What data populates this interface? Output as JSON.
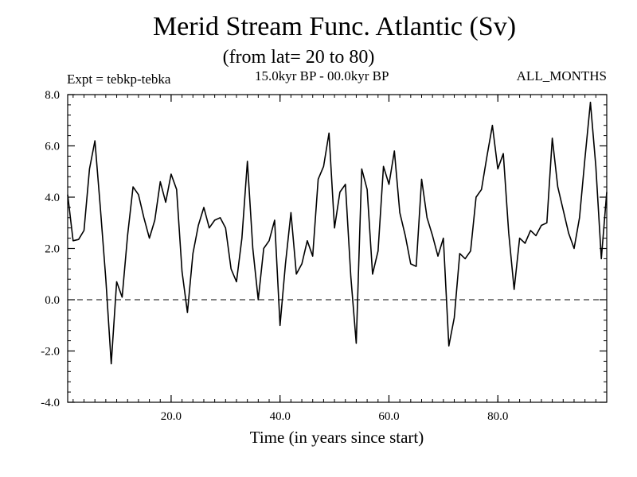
{
  "chart_data": {
    "type": "line",
    "title": "Merid Stream Func. Atlantic (Sv)",
    "subtitle": "(from lat= 20 to 80)",
    "header_left": "Expt = tebkp-tebka",
    "header_center": "15.0kyr BP - 00.0kyr BP",
    "header_right": "ALL_MONTHS",
    "xlabel": "Time (in years since start)",
    "ylabel": "",
    "xlim": [
      1,
      100
    ],
    "ylim": [
      -4,
      8
    ],
    "xticks": [
      20,
      40,
      60,
      80
    ],
    "xtick_labels": [
      "20.0",
      "40.0",
      "60.0",
      "80.0"
    ],
    "yticks": [
      -4,
      -2,
      0,
      2,
      4,
      6,
      8
    ],
    "ytick_labels": [
      "-4.0",
      "-2.0",
      "0.0",
      "2.0",
      "4.0",
      "6.0",
      "8.0"
    ],
    "reference_line": {
      "y": 0,
      "style": "dashed"
    },
    "series": [
      {
        "name": "Merid Stream Func.",
        "x": [
          1,
          2,
          3,
          4,
          5,
          6,
          7,
          8,
          9,
          10,
          11,
          12,
          13,
          14,
          15,
          16,
          17,
          18,
          19,
          20,
          21,
          22,
          23,
          24,
          25,
          26,
          27,
          28,
          29,
          30,
          31,
          32,
          33,
          34,
          35,
          36,
          37,
          38,
          39,
          40,
          41,
          42,
          43,
          44,
          45,
          46,
          47,
          48,
          49,
          50,
          51,
          52,
          53,
          54,
          55,
          56,
          57,
          58,
          59,
          60,
          61,
          62,
          63,
          64,
          65,
          66,
          67,
          68,
          69,
          70,
          71,
          72,
          73,
          74,
          75,
          76,
          77,
          78,
          79,
          80,
          81,
          82,
          83,
          84,
          85,
          86,
          87,
          88,
          89,
          90,
          91,
          92,
          93,
          94,
          95,
          96,
          97,
          98,
          99,
          100
        ],
        "values": [
          4.1,
          2.3,
          2.35,
          2.7,
          5.1,
          6.2,
          3.6,
          0.8,
          -2.5,
          0.7,
          0.1,
          2.5,
          4.4,
          4.1,
          3.2,
          2.4,
          3.1,
          4.6,
          3.8,
          4.9,
          4.3,
          1.1,
          -0.5,
          1.8,
          2.9,
          3.6,
          2.8,
          3.1,
          3.2,
          2.8,
          1.2,
          0.7,
          2.4,
          5.4,
          2.0,
          0.0,
          2.0,
          2.3,
          3.1,
          -1.0,
          1.4,
          3.4,
          1.0,
          1.4,
          2.3,
          1.7,
          4.7,
          5.2,
          6.5,
          2.8,
          4.2,
          4.5,
          0.9,
          -1.7,
          5.1,
          4.3,
          1.0,
          1.9,
          5.2,
          4.5,
          5.8,
          3.4,
          2.5,
          1.4,
          1.3,
          4.7,
          3.2,
          2.5,
          1.7,
          2.4,
          -1.8,
          -0.7,
          1.8,
          1.6,
          1.9,
          4.0,
          4.3,
          5.6,
          6.8,
          5.1,
          5.7,
          2.6,
          0.4,
          2.4,
          2.2,
          2.7,
          2.5,
          2.9,
          3.0,
          6.3,
          4.4,
          3.5,
          2.6,
          2.0,
          3.2,
          5.5,
          7.7,
          5.2,
          1.6,
          4.2
        ]
      }
    ]
  }
}
